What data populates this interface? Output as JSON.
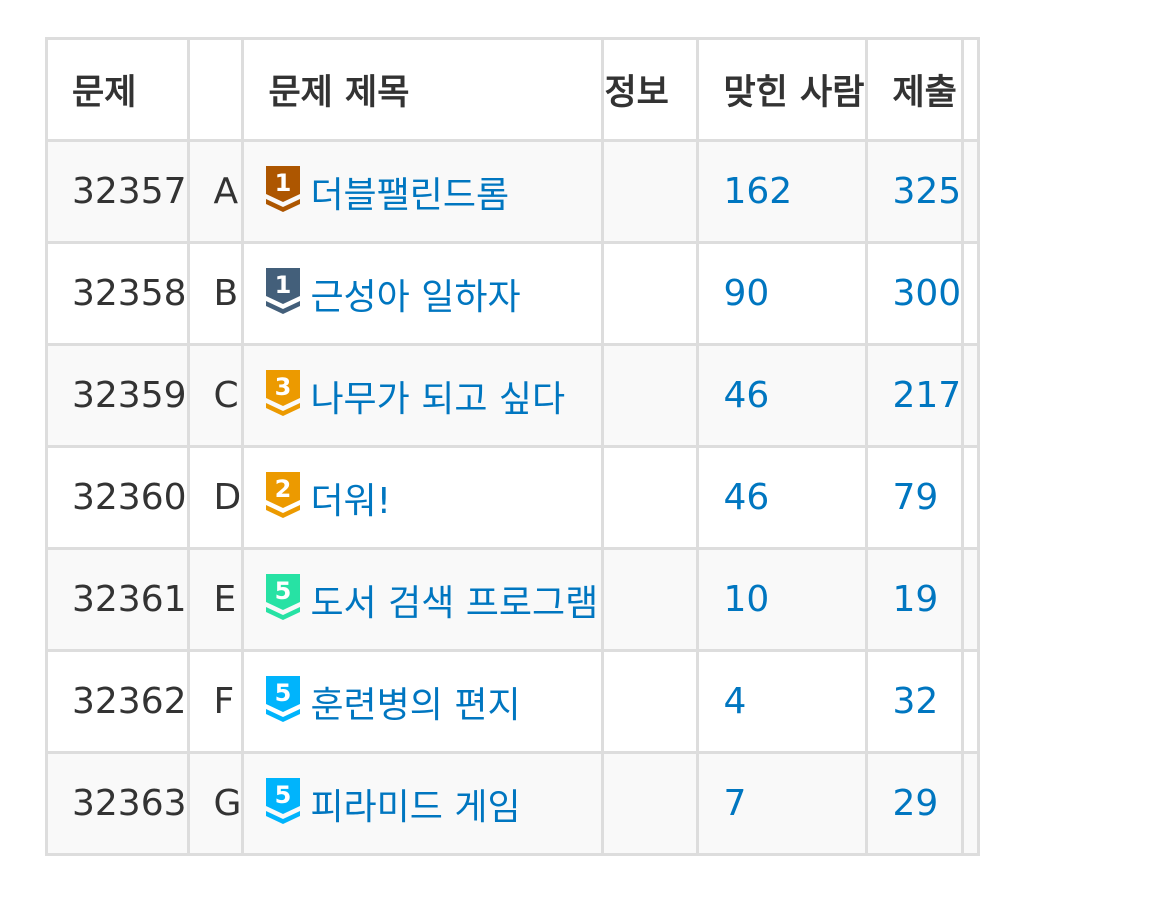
{
  "table": {
    "headers": {
      "id": "문제",
      "number": "",
      "title": "문제 제목",
      "info": "정보",
      "solved": "맞힌 사람",
      "submissions": "제출"
    },
    "rows": [
      {
        "id": "32357",
        "number": "A",
        "tier_icon": "bronze-1-tier-icon",
        "tier_level": "1",
        "tier_color": "#ad5600",
        "title": "더블팰린드롬",
        "solved": "162",
        "submissions": "325"
      },
      {
        "id": "32358",
        "number": "B",
        "tier_icon": "silver-1-tier-icon",
        "tier_level": "1",
        "tier_color": "#435f7a",
        "title": "근성아 일하자",
        "solved": "90",
        "submissions": "300"
      },
      {
        "id": "32359",
        "number": "C",
        "tier_icon": "gold-3-tier-icon",
        "tier_level": "3",
        "tier_color": "#ec9a00",
        "title": "나무가 되고 싶다",
        "solved": "46",
        "submissions": "217"
      },
      {
        "id": "32360",
        "number": "D",
        "tier_icon": "gold-2-tier-icon",
        "tier_level": "2",
        "tier_color": "#ec9a00",
        "title": "더워!",
        "solved": "46",
        "submissions": "79"
      },
      {
        "id": "32361",
        "number": "E",
        "tier_icon": "platinum-5-tier-icon",
        "tier_level": "5",
        "tier_color": "#27e2a4",
        "title": "도서 검색 프로그램",
        "solved": "10",
        "submissions": "19"
      },
      {
        "id": "32362",
        "number": "F",
        "tier_icon": "diamond-5-tier-icon",
        "tier_level": "5",
        "tier_color": "#00b4fc",
        "title": "훈련병의 편지",
        "solved": "4",
        "submissions": "32"
      },
      {
        "id": "32363",
        "number": "G",
        "tier_icon": "diamond-5-tier-icon",
        "tier_level": "5",
        "tier_color": "#00b4fc",
        "title": "피라미드 게임",
        "solved": "7",
        "submissions": "29"
      }
    ]
  },
  "colors": {
    "link": "#0076c0",
    "text": "#333333",
    "border": "#dddddd",
    "stripe": "#f9f9f9"
  }
}
